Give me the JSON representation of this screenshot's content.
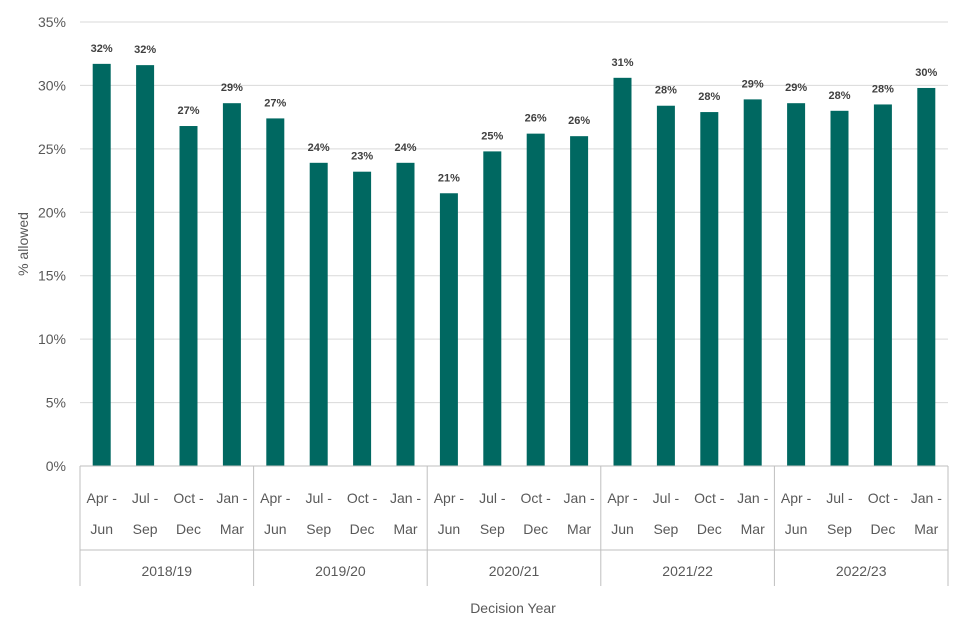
{
  "colors": {
    "bar": "#006861",
    "grid": "#d9d9d9",
    "axis": "#bfbfbf",
    "text": "#595959"
  },
  "chart_data": {
    "type": "bar",
    "title": "",
    "ylabel": "% allowed",
    "xlabel": "Decision Year",
    "ylim": [
      0,
      35
    ],
    "yticks": [
      0,
      5,
      10,
      15,
      20,
      25,
      30,
      35
    ],
    "ytick_labels": [
      "0%",
      "5%",
      "10%",
      "15%",
      "20%",
      "25%",
      "30%",
      "35%"
    ],
    "grid": true,
    "legend": "none",
    "groups": [
      {
        "label": "2018/19",
        "categories": [
          [
            "Apr -",
            "Jun"
          ],
          [
            "Jul -",
            "Sep"
          ],
          [
            "Oct -",
            "Dec"
          ],
          [
            "Jan -",
            "Mar"
          ]
        ],
        "values": [
          31.7,
          31.6,
          26.8,
          28.6
        ],
        "data_labels": [
          "32%",
          "32%",
          "27%",
          "29%"
        ]
      },
      {
        "label": "2019/20",
        "categories": [
          [
            "Apr -",
            "Jun"
          ],
          [
            "Jul -",
            "Sep"
          ],
          [
            "Oct -",
            "Dec"
          ],
          [
            "Jan -",
            "Mar"
          ]
        ],
        "values": [
          27.4,
          23.9,
          23.2,
          23.9
        ],
        "data_labels": [
          "27%",
          "24%",
          "23%",
          "24%"
        ]
      },
      {
        "label": "2020/21",
        "categories": [
          [
            "Apr -",
            "Jun"
          ],
          [
            "Jul -",
            "Sep"
          ],
          [
            "Oct -",
            "Dec"
          ],
          [
            "Jan -",
            "Mar"
          ]
        ],
        "values": [
          21.5,
          24.8,
          26.2,
          26.0
        ],
        "data_labels": [
          "21%",
          "25%",
          "26%",
          "26%"
        ]
      },
      {
        "label": "2021/22",
        "categories": [
          [
            "Apr -",
            "Jun"
          ],
          [
            "Jul -",
            "Sep"
          ],
          [
            "Oct -",
            "Dec"
          ],
          [
            "Jan -",
            "Mar"
          ]
        ],
        "values": [
          30.6,
          28.4,
          27.9,
          28.9
        ],
        "data_labels": [
          "31%",
          "28%",
          "28%",
          "29%"
        ]
      },
      {
        "label": "2022/23",
        "categories": [
          [
            "Apr -",
            "Jun"
          ],
          [
            "Jul -",
            "Sep"
          ],
          [
            "Oct -",
            "Dec"
          ],
          [
            "Jan -",
            "Mar"
          ]
        ],
        "values": [
          28.6,
          28.0,
          28.5,
          29.8
        ],
        "data_labels": [
          "29%",
          "28%",
          "28%",
          "30%"
        ]
      }
    ]
  }
}
